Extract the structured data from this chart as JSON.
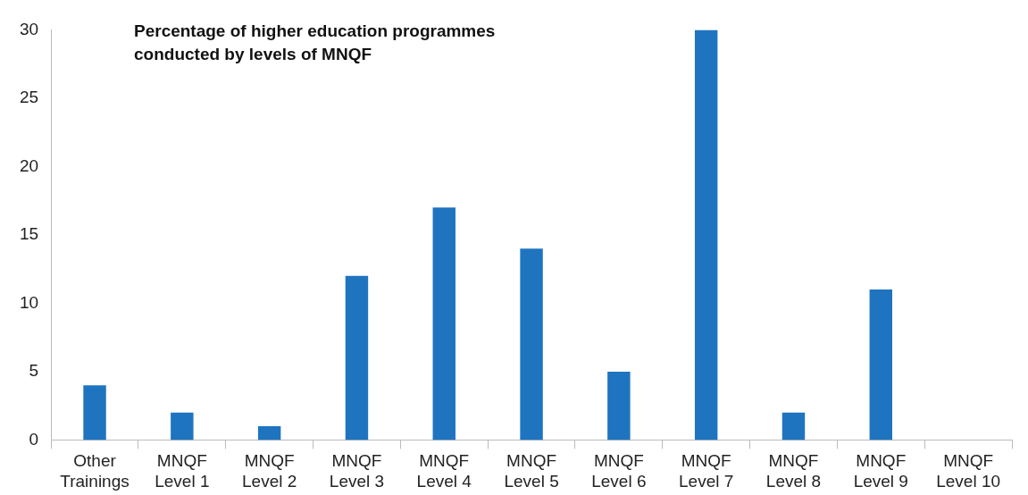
{
  "chart_data": {
    "type": "bar",
    "title": "Percentage of higher education programmes conducted by levels of MNQF",
    "categories": [
      "Other Trainings",
      "MNQF Level 1",
      "MNQF Level 2",
      "MNQF Level 3",
      "MNQF Level 4",
      "MNQF Level 5",
      "MNQF Level 6",
      "MNQF Level 7",
      "MNQF Level 8",
      "MNQF Level 9",
      "MNQF Level 10"
    ],
    "values": [
      4,
      2,
      1,
      12,
      17,
      14,
      5,
      30,
      2,
      11,
      0
    ],
    "color": "#1f74c0",
    "ylim": [
      0,
      30
    ],
    "yticks": [
      0,
      5,
      10,
      15,
      20,
      25,
      30
    ],
    "grid": false,
    "legend": false
  }
}
